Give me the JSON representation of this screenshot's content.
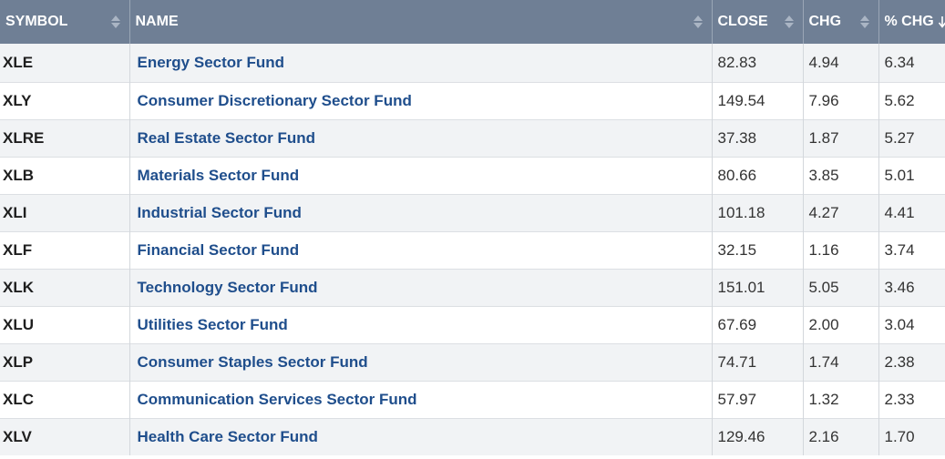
{
  "colors": {
    "header_bg": "#6f7f95",
    "header_text": "#ffffff",
    "link": "#1f4e8c",
    "row_alt": "#f1f3f5"
  },
  "columns": [
    {
      "key": "symbol",
      "label": "SYMBOL",
      "sort_icon": "sort-both-icon"
    },
    {
      "key": "name",
      "label": "NAME",
      "sort_icon": "sort-both-icon"
    },
    {
      "key": "close",
      "label": "CLOSE",
      "sort_icon": "sort-both-icon"
    },
    {
      "key": "chg",
      "label": "CHG",
      "sort_icon": "sort-both-icon"
    },
    {
      "key": "pct_chg",
      "label": "% CHG",
      "sort_icon": "sort-down-icon"
    }
  ],
  "rows": [
    {
      "symbol": "XLE",
      "name": "Energy Sector Fund",
      "close": "82.83",
      "chg": "4.94",
      "pct_chg": "6.34"
    },
    {
      "symbol": "XLY",
      "name": "Consumer Discretionary Sector Fund",
      "close": "149.54",
      "chg": "7.96",
      "pct_chg": "5.62"
    },
    {
      "symbol": "XLRE",
      "name": "Real Estate Sector Fund",
      "close": "37.38",
      "chg": "1.87",
      "pct_chg": "5.27"
    },
    {
      "symbol": "XLB",
      "name": "Materials Sector Fund",
      "close": "80.66",
      "chg": "3.85",
      "pct_chg": "5.01"
    },
    {
      "symbol": "XLI",
      "name": "Industrial Sector Fund",
      "close": "101.18",
      "chg": "4.27",
      "pct_chg": "4.41"
    },
    {
      "symbol": "XLF",
      "name": "Financial Sector Fund",
      "close": "32.15",
      "chg": "1.16",
      "pct_chg": "3.74"
    },
    {
      "symbol": "XLK",
      "name": "Technology Sector Fund",
      "close": "151.01",
      "chg": "5.05",
      "pct_chg": "3.46"
    },
    {
      "symbol": "XLU",
      "name": "Utilities Sector Fund",
      "close": "67.69",
      "chg": "2.00",
      "pct_chg": "3.04"
    },
    {
      "symbol": "XLP",
      "name": "Consumer Staples Sector Fund",
      "close": "74.71",
      "chg": "1.74",
      "pct_chg": "2.38"
    },
    {
      "symbol": "XLC",
      "name": "Communication Services Sector Fund",
      "close": "57.97",
      "chg": "1.32",
      "pct_chg": "2.33"
    },
    {
      "symbol": "XLV",
      "name": "Health Care Sector Fund",
      "close": "129.46",
      "chg": "2.16",
      "pct_chg": "1.70"
    }
  ]
}
